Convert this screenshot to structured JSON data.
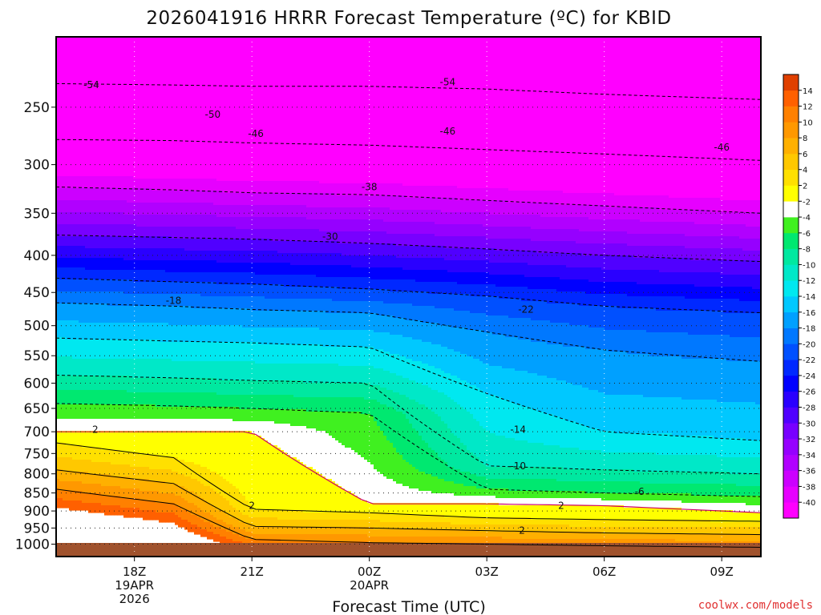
{
  "title": "2026041916 HRRR Forecast Temperature (ºC) for KBID",
  "credit": "coolwx.com/models",
  "chart_data": {
    "type": "heatmap",
    "title": "2026041916 HRRR Forecast Temperature (ºC) for KBID",
    "xlabel": "Forecast Time (UTC)",
    "ylabel": "",
    "y_scale": "log",
    "y_reversed": true,
    "y_ticks": [
      250,
      300,
      350,
      400,
      450,
      500,
      550,
      600,
      650,
      700,
      750,
      800,
      850,
      900,
      950,
      1000
    ],
    "x_ticks": [
      {
        "hours": 2,
        "label": "18Z",
        "line2": "19APR",
        "line3": "2026"
      },
      {
        "hours": 5,
        "label": "21Z",
        "line2": "",
        "line3": ""
      },
      {
        "hours": 8,
        "label": "00Z",
        "line2": "20APR",
        "line3": ""
      },
      {
        "hours": 11,
        "label": "03Z",
        "line2": "",
        "line3": ""
      },
      {
        "hours": 14,
        "label": "06Z",
        "line2": "",
        "line3": ""
      },
      {
        "hours": 17,
        "label": "09Z",
        "line2": "",
        "line3": ""
      }
    ],
    "x_range_hours": [
      0,
      18
    ],
    "y_range_hpa": [
      200,
      1040
    ],
    "grid": true,
    "colorbar": {
      "levels": [
        -40,
        -38,
        -36,
        -34,
        -32,
        -30,
        -28,
        -26,
        -24,
        -22,
        -20,
        -18,
        -16,
        -14,
        -12,
        -10,
        -8,
        -6,
        -4,
        -2,
        2,
        4,
        6,
        8,
        10,
        12,
        14
      ],
      "colors": [
        "#ff00ff",
        "#e600ff",
        "#cc00ff",
        "#b100ff",
        "#9600ff",
        "#7800ff",
        "#5000ff",
        "#2a00ff",
        "#0000ff",
        "#0028ff",
        "#0050ff",
        "#0078ff",
        "#00a0ff",
        "#00c8ff",
        "#00e8f0",
        "#00e8c8",
        "#00e8a0",
        "#00e870",
        "#40f020",
        "#ffffff",
        "#ffff00",
        "#ffe000",
        "#ffc800",
        "#ffb000",
        "#ff9800",
        "#ff8000",
        "#ff6000",
        "#e04000"
      ]
    },
    "temperature_profiles": [
      {
        "hours": 0,
        "isotherms_hpa": {
          "-54": 232,
          "-46": 277,
          "-38": 322,
          "-30": 375,
          "-22": 430,
          "-18": 465,
          "-14": 520,
          "-10": 585,
          "-6": 640,
          "-2": 700,
          "2": 725,
          "6": 790,
          "10": 840
        }
      },
      {
        "hours": 3,
        "isotherms_hpa": {
          "-54": 233,
          "-46": 278,
          "-38": 325,
          "-30": 378,
          "-22": 435,
          "-18": 470,
          "-14": 525,
          "-10": 590,
          "-6": 645,
          "-2": 700,
          "2": 760,
          "6": 825,
          "10": 880
        }
      },
      {
        "hours": 5,
        "isotherms_hpa": {
          "-54": 234,
          "-46": 280,
          "-38": 328,
          "-30": 380,
          "-22": 438,
          "-18": 475,
          "-14": 528,
          "-10": 595,
          "-6": 650,
          "-2": 700,
          "2": 895,
          "6": 945,
          "10": 985
        }
      },
      {
        "hours": 8,
        "isotherms_hpa": {
          "-54": 234,
          "-46": 282,
          "-38": 330,
          "-30": 385,
          "-22": 445,
          "-18": 480,
          "-14": 535,
          "-10": 600,
          "-6": 660,
          "-2": 880,
          "2": 905,
          "6": 950,
          "10": 995
        }
      },
      {
        "hours": 11,
        "isotherms_hpa": {
          "-54": 236,
          "-46": 286,
          "-38": 336,
          "-30": 392,
          "-22": 455,
          "-18": 510,
          "-14": 620,
          "-10": 780,
          "-6": 840,
          "-2": 880,
          "2": 920,
          "6": 958,
          "10": 1000
        }
      },
      {
        "hours": 14,
        "isotherms_hpa": {
          "-54": 240,
          "-46": 290,
          "-38": 342,
          "-30": 400,
          "-22": 470,
          "-18": 540,
          "-14": 700,
          "-10": 790,
          "-6": 850,
          "-2": 885,
          "2": 925,
          "6": 965,
          "10": 1005
        }
      },
      {
        "hours": 18,
        "isotherms_hpa": {
          "-54": 244,
          "-46": 296,
          "-38": 350,
          "-30": 408,
          "-22": 480,
          "-18": 560,
          "-14": 720,
          "-10": 800,
          "-6": 860,
          "-2": 905,
          "2": 930,
          "6": 970,
          "10": 1010
        }
      }
    ],
    "contour_labels": [
      {
        "value": "-54",
        "hours": 0.9,
        "hpa": 233
      },
      {
        "value": "-54",
        "hours": 10.0,
        "hpa": 231
      },
      {
        "value": "-50",
        "hours": 4.0,
        "hpa": 256
      },
      {
        "value": "-46",
        "hours": 5.1,
        "hpa": 272
      },
      {
        "value": "-46",
        "hours": 10.0,
        "hpa": 270
      },
      {
        "value": "-46",
        "hours": 17.0,
        "hpa": 284
      },
      {
        "value": "-38",
        "hours": 8.0,
        "hpa": 322
      },
      {
        "value": "-30",
        "hours": 7.0,
        "hpa": 377
      },
      {
        "value": "-22",
        "hours": 12.0,
        "hpa": 475
      },
      {
        "value": "-18",
        "hours": 3.0,
        "hpa": 462
      },
      {
        "value": "-14",
        "hours": 11.8,
        "hpa": 695
      },
      {
        "value": "-10",
        "hours": 11.8,
        "hpa": 780
      },
      {
        "value": "-6",
        "hours": 14.9,
        "hpa": 847
      },
      {
        "value": "2",
        "hours": 1.0,
        "hpa": 695
      },
      {
        "value": "2",
        "hours": 5.0,
        "hpa": 885
      },
      {
        "value": "2",
        "hours": 12.9,
        "hpa": 885
      },
      {
        "value": "2",
        "hours": 11.9,
        "hpa": 957
      }
    ]
  }
}
